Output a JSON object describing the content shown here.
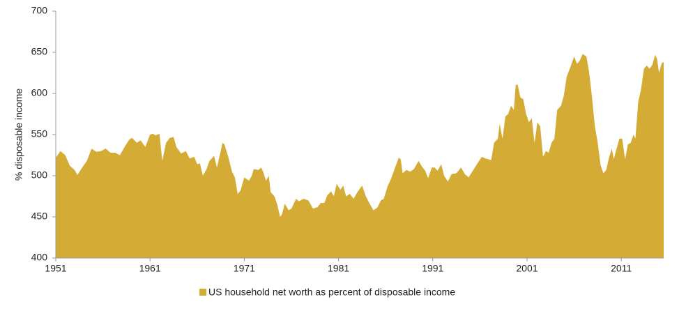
{
  "chart_data": {
    "type": "area",
    "y_label": "% disposable income",
    "xlim": [
      1951,
      2015.5
    ],
    "xticks": [
      1951,
      1961,
      1971,
      1981,
      1991,
      2001,
      2011
    ],
    "ylim": [
      400,
      700
    ],
    "yticks": [
      400,
      450,
      500,
      550,
      600,
      650,
      700
    ],
    "grid": false,
    "legend": "bottom",
    "x": [
      1951.0,
      1951.5,
      1952.0,
      1952.5,
      1953.0,
      1953.3,
      1953.8,
      1954.3,
      1954.8,
      1955.3,
      1955.8,
      1956.3,
      1956.8,
      1957.3,
      1957.8,
      1958.3,
      1958.8,
      1959.1,
      1959.6,
      1960.0,
      1960.5,
      1961.0,
      1961.3,
      1961.6,
      1962.0,
      1962.3,
      1962.7,
      1963.1,
      1963.5,
      1963.8,
      1964.3,
      1964.8,
      1965.2,
      1965.7,
      1966.0,
      1966.3,
      1966.6,
      1967.0,
      1967.3,
      1967.8,
      1968.1,
      1968.7,
      1968.9,
      1969.3,
      1969.7,
      1970.0,
      1970.3,
      1970.6,
      1971.0,
      1971.5,
      1971.8,
      1972.0,
      1972.5,
      1972.8,
      1973.0,
      1973.3,
      1973.6,
      1973.8,
      1974.2,
      1974.5,
      1974.8,
      1975.0,
      1975.3,
      1975.7,
      1976.0,
      1976.5,
      1976.8,
      1977.3,
      1977.8,
      1978.3,
      1978.8,
      1979.1,
      1979.5,
      1979.8,
      1980.2,
      1980.5,
      1980.8,
      1981.2,
      1981.5,
      1981.8,
      1982.2,
      1982.6,
      1983.0,
      1983.5,
      1983.9,
      1984.3,
      1984.7,
      1985.1,
      1985.5,
      1985.8,
      1986.2,
      1986.6,
      1987.0,
      1987.4,
      1987.6,
      1987.8,
      1988.2,
      1988.6,
      1989.0,
      1989.5,
      1989.8,
      1990.2,
      1990.5,
      1990.9,
      1991.2,
      1991.5,
      1991.9,
      1992.2,
      1992.6,
      1993.0,
      1993.5,
      1994.0,
      1994.4,
      1994.8,
      1995.3,
      1995.8,
      1996.2,
      1996.6,
      1997.2,
      1997.5,
      1997.9,
      1998.1,
      1998.4,
      1998.7,
      1999.0,
      1999.3,
      1999.6,
      1999.8,
      2000.0,
      2000.3,
      2000.6,
      2000.9,
      2001.2,
      2001.5,
      2001.8,
      2002.1,
      2002.4,
      2002.7,
      2003.0,
      2003.3,
      2003.6,
      2003.9,
      2004.2,
      2004.6,
      2004.9,
      2005.2,
      2005.6,
      2006.0,
      2006.3,
      2006.6,
      2006.9,
      2007.3,
      2007.6,
      2007.9,
      2008.2,
      2008.5,
      2008.8,
      2009.1,
      2009.4,
      2009.7,
      2010.0,
      2010.2,
      2010.5,
      2010.8,
      2011.1,
      2011.4,
      2011.7,
      2012.0,
      2012.3,
      2012.5,
      2012.8,
      2013.1,
      2013.4,
      2013.7,
      2014.0,
      2014.3,
      2014.6,
      2014.8,
      2015.0,
      2015.3,
      2015.5
    ],
    "series": [
      {
        "name": "US household net worth as percent of disposable income",
        "color": "#d4ac35",
        "values": [
          522,
          530,
          525,
          512,
          507,
          501,
          510,
          518,
          533,
          529,
          530,
          533,
          528,
          528,
          525,
          535,
          544,
          546,
          540,
          543,
          535,
          550,
          551,
          549,
          551,
          518,
          540,
          546,
          547,
          535,
          527,
          530,
          521,
          523,
          514,
          515,
          500,
          508,
          518,
          524,
          510,
          540,
          538,
          523,
          505,
          498,
          478,
          482,
          498,
          494,
          500,
          508,
          507,
          510,
          505,
          494,
          500,
          480,
          475,
          465,
          450,
          453,
          466,
          458,
          460,
          472,
          469,
          472,
          470,
          460,
          462,
          467,
          467,
          476,
          481,
          475,
          490,
          483,
          488,
          475,
          478,
          472,
          480,
          488,
          475,
          466,
          458,
          461,
          470,
          472,
          487,
          497,
          510,
          522,
          520,
          503,
          507,
          505,
          508,
          518,
          512,
          506,
          497,
          510,
          510,
          506,
          514,
          500,
          493,
          502,
          503,
          510,
          502,
          498,
          507,
          516,
          523,
          521,
          519,
          540,
          545,
          563,
          545,
          572,
          575,
          585,
          580,
          610,
          611,
          595,
          593,
          575,
          565,
          570,
          540,
          565,
          560,
          523,
          530,
          528,
          540,
          545,
          580,
          585,
          597,
          620,
          632,
          645,
          636,
          640,
          648,
          645,
          625,
          595,
          560,
          540,
          513,
          503,
          507,
          522,
          533,
          520,
          533,
          545,
          545,
          520,
          538,
          540,
          550,
          545,
          590,
          605,
          630,
          634,
          630,
          635,
          647,
          642,
          625,
          637,
          638
        ]
      }
    ]
  }
}
